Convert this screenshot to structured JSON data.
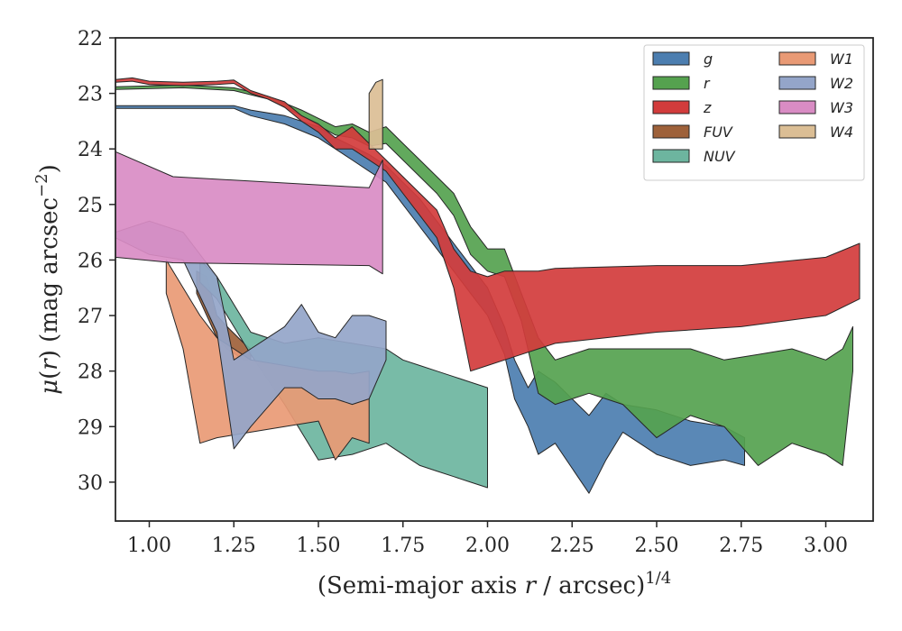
{
  "chart_data": {
    "type": "area",
    "xlabel": "(Semi-major axis r / arcsec)",
    "xlabel_parts": {
      "pre": "(Semi-major axis ",
      "var": "r",
      "post": " / arcsec)",
      "sup": "1/4"
    },
    "ylabel_parts": {
      "mu": "μ",
      "lp": "(",
      "var": "r",
      "rp": ") (mag arcsec",
      "sup": "−2",
      "end": ")"
    },
    "xlim": [
      0.9,
      3.14
    ],
    "ylim": [
      30.7,
      22.0
    ],
    "y_inverted": true,
    "x_ticks": [
      1.0,
      1.25,
      1.5,
      1.75,
      2.0,
      2.25,
      2.5,
      2.75,
      3.0
    ],
    "x_tick_labels": [
      "1.00",
      "1.25",
      "1.50",
      "1.75",
      "2.00",
      "2.25",
      "2.50",
      "2.75",
      "3.00"
    ],
    "y_ticks": [
      22,
      23,
      24,
      25,
      26,
      27,
      28,
      29,
      30
    ],
    "y_tick_labels": [
      "22",
      "23",
      "24",
      "25",
      "26",
      "27",
      "28",
      "29",
      "30"
    ],
    "grid": false,
    "legend_position": "top-right",
    "legend_columns": 2,
    "series": [
      {
        "name": "g",
        "color": "#4c7eb0",
        "x": [
          0.9,
          1.1,
          1.25,
          1.3,
          1.4,
          1.5,
          1.55,
          1.6,
          1.65,
          1.7,
          1.75,
          1.8,
          1.85,
          1.9,
          1.95,
          2.0,
          2.05,
          2.08,
          2.12,
          2.15,
          2.2,
          2.3,
          2.35,
          2.4,
          2.5,
          2.6,
          2.7,
          2.76
        ],
        "lower": [
          23.22,
          23.22,
          23.22,
          23.3,
          23.4,
          23.6,
          23.8,
          23.95,
          24.1,
          24.3,
          24.6,
          24.9,
          25.3,
          25.7,
          26.1,
          26.5,
          27.2,
          27.8,
          28.3,
          28.0,
          28.2,
          28.8,
          28.4,
          28.6,
          28.7,
          28.9,
          29.0,
          29.2
        ],
        "upper": [
          23.27,
          23.27,
          23.27,
          23.4,
          23.55,
          23.8,
          24.0,
          24.2,
          24.4,
          24.6,
          25.0,
          25.4,
          25.8,
          26.2,
          26.6,
          27.0,
          27.7,
          28.5,
          29.0,
          29.5,
          29.3,
          30.2,
          29.6,
          29.1,
          29.5,
          29.7,
          29.6,
          29.7
        ]
      },
      {
        "name": "r",
        "color": "#55a24f",
        "x": [
          0.9,
          1.1,
          1.25,
          1.35,
          1.45,
          1.55,
          1.6,
          1.65,
          1.7,
          1.75,
          1.8,
          1.85,
          1.9,
          1.95,
          2.0,
          2.05,
          2.1,
          2.15,
          2.2,
          2.3,
          2.4,
          2.5,
          2.6,
          2.7,
          2.8,
          2.9,
          3.0,
          3.05,
          3.08
        ],
        "lower": [
          22.88,
          22.85,
          22.9,
          23.05,
          23.3,
          23.6,
          23.55,
          23.7,
          23.6,
          23.9,
          24.2,
          24.5,
          24.8,
          25.4,
          25.8,
          25.8,
          26.6,
          27.4,
          27.8,
          27.6,
          27.6,
          27.6,
          27.6,
          27.8,
          27.7,
          27.6,
          27.8,
          27.6,
          27.2
        ],
        "upper": [
          22.93,
          22.9,
          22.95,
          23.1,
          23.4,
          23.75,
          23.8,
          23.95,
          23.9,
          24.2,
          24.5,
          24.8,
          25.2,
          25.9,
          26.2,
          26.3,
          27.1,
          28.4,
          28.6,
          28.4,
          28.6,
          29.2,
          28.8,
          29.0,
          29.7,
          29.3,
          29.5,
          29.7,
          28.0
        ]
      },
      {
        "name": "z",
        "color": "#d23c3c",
        "x": [
          0.9,
          0.95,
          1.0,
          1.1,
          1.2,
          1.25,
          1.3,
          1.35,
          1.4,
          1.45,
          1.5,
          1.55,
          1.6,
          1.65,
          1.7,
          1.75,
          1.8,
          1.85,
          1.9,
          1.95,
          2.0,
          2.05,
          2.1,
          2.15,
          2.2,
          2.5,
          2.75,
          3.0,
          3.1
        ],
        "lower": [
          22.75,
          22.72,
          22.78,
          22.8,
          22.78,
          22.76,
          22.95,
          23.05,
          23.15,
          23.4,
          23.55,
          23.8,
          23.6,
          23.9,
          24.2,
          24.5,
          24.8,
          25.1,
          25.8,
          26.2,
          26.3,
          26.2,
          26.2,
          26.2,
          26.15,
          26.1,
          26.1,
          25.95,
          25.7
        ],
        "upper": [
          22.8,
          22.78,
          22.84,
          22.86,
          22.84,
          22.82,
          23.0,
          23.1,
          23.25,
          23.5,
          23.7,
          24.0,
          24.0,
          24.2,
          24.4,
          24.8,
          25.2,
          25.6,
          26.5,
          28.0,
          27.9,
          27.8,
          27.7,
          27.6,
          27.5,
          27.3,
          27.2,
          27.0,
          26.7
        ]
      },
      {
        "name": "FUV",
        "color": "#9e613a",
        "x": [
          1.14,
          1.17,
          1.2,
          1.23,
          1.28,
          1.3
        ],
        "lower": [
          26.2,
          26.3,
          27.0,
          27.2,
          27.5,
          27.6
        ],
        "upper": [
          26.6,
          27.0,
          27.4,
          27.6,
          27.8,
          27.8
        ]
      },
      {
        "name": "NUV",
        "color": "#6db59f",
        "x": [
          1.15,
          1.2,
          1.25,
          1.3,
          1.4,
          1.5,
          1.6,
          1.7,
          1.75,
          1.8,
          1.85,
          1.9,
          1.95,
          2.0
        ],
        "lower": [
          26.0,
          26.3,
          26.8,
          27.3,
          27.5,
          27.4,
          27.5,
          27.6,
          27.8,
          27.9,
          28.0,
          28.1,
          28.2,
          28.3
        ],
        "upper": [
          26.4,
          26.7,
          27.2,
          27.7,
          28.6,
          29.6,
          29.5,
          29.3,
          29.5,
          29.7,
          29.8,
          29.9,
          30.0,
          30.1
        ]
      },
      {
        "name": "W1",
        "color": "#e99a75",
        "x": [
          1.05,
          1.1,
          1.15,
          1.2,
          1.3,
          1.4,
          1.5,
          1.55,
          1.6,
          1.65
        ],
        "lower": [
          26.0,
          26.5,
          27.0,
          27.4,
          27.8,
          27.9,
          28.0,
          28.0,
          28.05,
          28.0
        ],
        "upper": [
          26.6,
          27.6,
          29.3,
          29.2,
          29.1,
          29.0,
          28.9,
          29.6,
          29.2,
          29.3
        ]
      },
      {
        "name": "W2",
        "color": "#94a5c9",
        "x": [
          0.9,
          1.0,
          1.1,
          1.2,
          1.25,
          1.3,
          1.4,
          1.45,
          1.5,
          1.55,
          1.6,
          1.65,
          1.7
        ],
        "lower": [
          25.5,
          25.3,
          25.5,
          26.3,
          27.8,
          27.6,
          27.2,
          26.8,
          27.3,
          27.4,
          27.0,
          27.0,
          27.1
        ],
        "upper": [
          25.6,
          25.9,
          26.0,
          27.3,
          29.4,
          29.0,
          28.3,
          28.3,
          28.5,
          28.5,
          28.6,
          28.5,
          27.8
        ]
      },
      {
        "name": "W3",
        "color": "#d98cc4",
        "x": [
          0.9,
          1.07,
          1.65,
          1.69
        ],
        "lower": [
          24.05,
          24.5,
          24.7,
          24.2
        ],
        "upper": [
          25.95,
          26.05,
          26.1,
          26.25
        ]
      },
      {
        "name": "W4",
        "color": "#dbbe95",
        "x": [
          1.65,
          1.67,
          1.69
        ],
        "lower": [
          23.0,
          22.8,
          22.75
        ],
        "upper": [
          24.0,
          24.0,
          24.0
        ]
      }
    ]
  }
}
